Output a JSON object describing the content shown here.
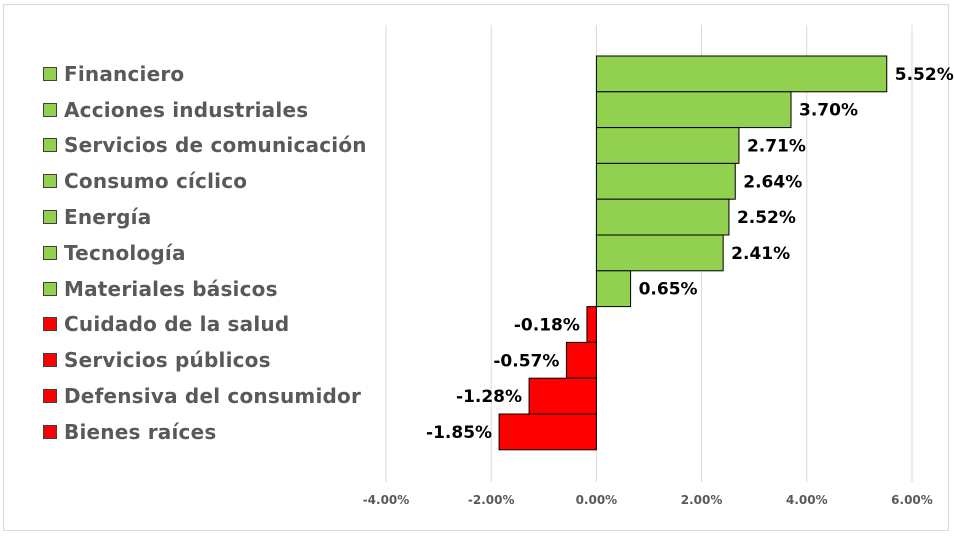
{
  "chart_data": {
    "type": "bar",
    "orientation": "horizontal",
    "title": "",
    "xlabel": "",
    "ylabel": "",
    "categories": [
      "Financiero",
      "Acciones industriales",
      "Servicios de comunicación",
      "Consumo cíclico",
      "Energía",
      "Tecnología",
      "Materiales básicos",
      "Cuidado de la salud",
      "Servicios públicos",
      "Defensiva del consumidor",
      "Bienes raíces"
    ],
    "values": [
      5.52,
      3.7,
      2.71,
      2.64,
      2.52,
      2.41,
      0.65,
      -0.18,
      -0.57,
      -1.28,
      -1.85
    ],
    "data_labels": [
      "5.52%",
      "3.70%",
      "2.71%",
      "2.64%",
      "2.52%",
      "2.41%",
      "0.65%",
      "-0.18%",
      "-0.57%",
      "-1.28%",
      "-1.85%"
    ],
    "xlim": [
      -4,
      6
    ],
    "x_ticks": [
      -4,
      -2,
      0,
      2,
      4,
      6
    ],
    "x_tick_labels": [
      "-4.00%",
      "-2.00%",
      "0.00%",
      "2.00%",
      "4.00%",
      "6.00%"
    ],
    "grid": "vertical",
    "legend_position": "left",
    "colors": {
      "positive": "#92d050",
      "negative": "#ff0000",
      "gridline": "#d9d9d9",
      "bar_border": "#000000"
    }
  }
}
